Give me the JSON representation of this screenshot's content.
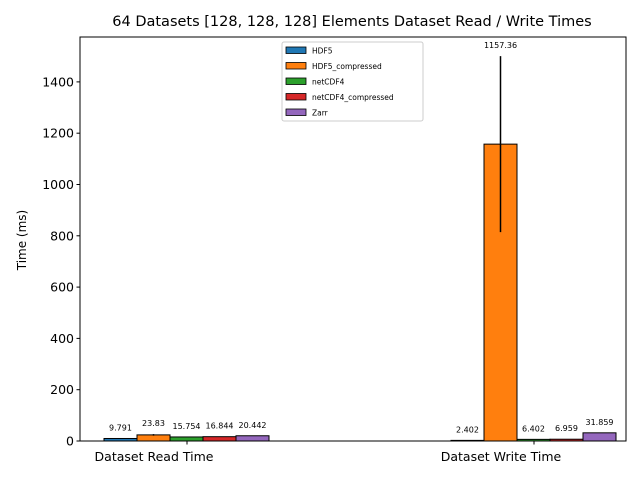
{
  "chart_data": {
    "type": "bar",
    "title": "64 Datasets [128, 128, 128] Elements Dataset Read / Write Times",
    "xlabel": "",
    "ylabel": "Time (ms)",
    "ylim": [
      0,
      1575
    ],
    "yticks": [
      0,
      200,
      400,
      600,
      800,
      1000,
      1200,
      1400
    ],
    "categories": [
      "Dataset Read Time",
      "Dataset Write Time"
    ],
    "legend_position": "top-center",
    "grid": false,
    "series": [
      {
        "name": "HDF5",
        "color": "#1f77b4",
        "values": [
          9.791,
          2.402
        ],
        "labels": [
          "9.791",
          "2.402"
        ],
        "errors": [
          0,
          0
        ]
      },
      {
        "name": "HDF5_compressed",
        "color": "#ff7f0e",
        "values": [
          23.83,
          1157.36
        ],
        "labels": [
          "23.83",
          "1157.36"
        ],
        "errors": [
          3,
          343
        ]
      },
      {
        "name": "netCDF4",
        "color": "#2ca02c",
        "values": [
          15.754,
          6.402
        ],
        "labels": [
          "15.754",
          "6.402"
        ],
        "errors": [
          0,
          0
        ]
      },
      {
        "name": "netCDF4_compressed",
        "color": "#d62728",
        "values": [
          16.844,
          6.959
        ],
        "labels": [
          "16.844",
          "6.959"
        ],
        "errors": [
          0,
          0
        ]
      },
      {
        "name": "Zarr",
        "color": "#9467bd",
        "values": [
          20.442,
          31.859
        ],
        "labels": [
          "20.442",
          "31.859"
        ],
        "errors": [
          0,
          0
        ]
      }
    ]
  }
}
